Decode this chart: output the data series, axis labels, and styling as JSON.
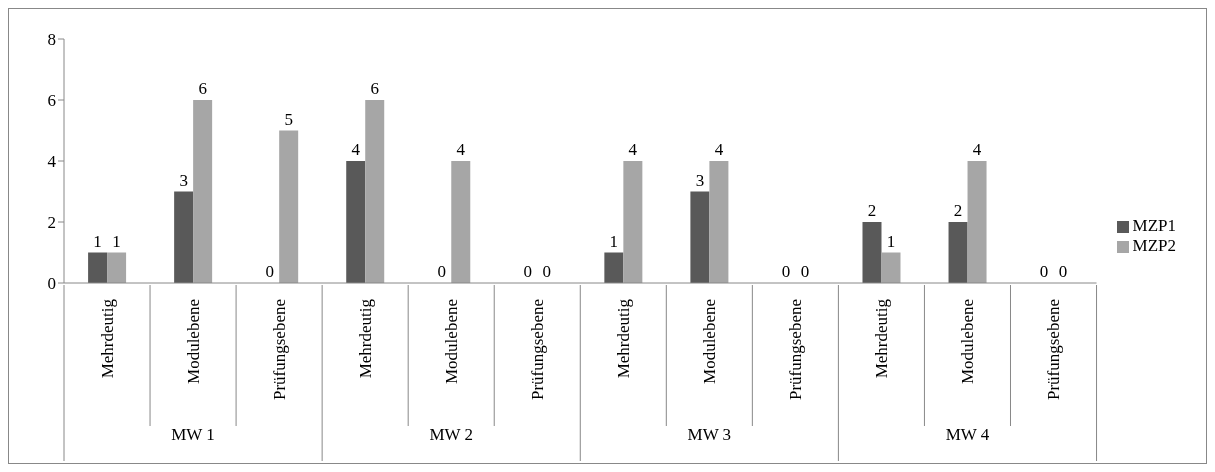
{
  "chart_data": {
    "type": "bar",
    "categories": [
      "Mehrdeutig",
      "Modulebene",
      "Prüfungsebene",
      "Mehrdeutig",
      "Modulebene",
      "Prüfungsebene",
      "Mehrdeutig",
      "Modulebene",
      "Prüfungsebene",
      "Mehrdeutig",
      "Modulebene",
      "Prüfungsebene"
    ],
    "series": [
      {
        "name": "MZP1",
        "color": "#595959",
        "values": [
          1,
          3,
          0,
          4,
          0,
          0,
          1,
          3,
          0,
          2,
          2,
          0
        ]
      },
      {
        "name": "MZP2",
        "color": "#a6a6a6",
        "values": [
          1,
          6,
          5,
          6,
          4,
          0,
          4,
          4,
          0,
          1,
          4,
          0
        ]
      }
    ],
    "annotations": [
      "MW 1",
      "MW 2",
      "MW 3",
      "MW 4"
    ],
    "ylim": [
      0,
      8
    ],
    "yticks": [
      0,
      2,
      4,
      6,
      8
    ],
    "legend": "right",
    "data_labels": true
  }
}
